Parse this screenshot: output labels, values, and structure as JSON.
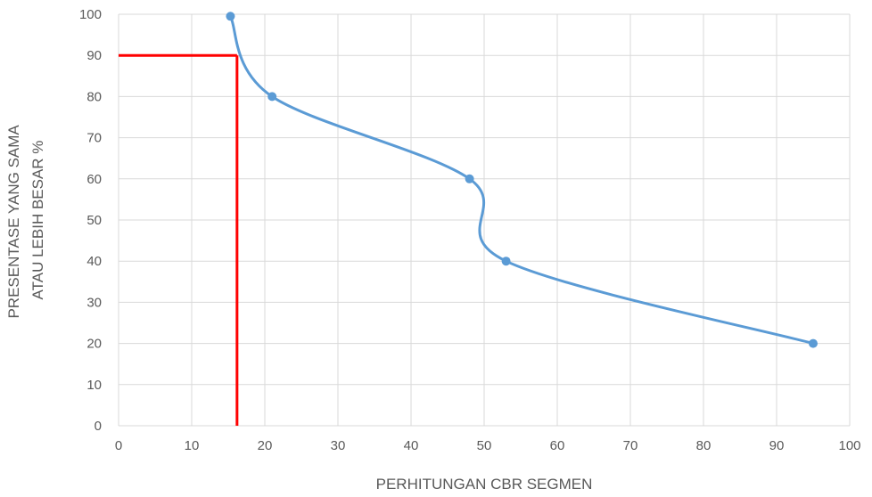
{
  "chart_data": {
    "type": "scatter",
    "title": "",
    "xlabel": "PERHITUNGAN CBR SEGMEN",
    "ylabel_lines": [
      "PRESENTASE YANG SAMA",
      "ATAU LEBIH BESAR %"
    ],
    "xlim": [
      0,
      100
    ],
    "ylim": [
      0,
      100
    ],
    "x_ticks": [
      0,
      10,
      20,
      30,
      40,
      50,
      60,
      70,
      80,
      90,
      100
    ],
    "y_ticks": [
      0,
      10,
      20,
      30,
      40,
      50,
      60,
      70,
      80,
      90,
      100
    ],
    "grid": true,
    "series": [
      {
        "color": "#5B9BD5",
        "smooth": true,
        "points": [
          {
            "x": 15.3,
            "y": 99.5
          },
          {
            "x": 21,
            "y": 80
          },
          {
            "x": 48,
            "y": 60
          },
          {
            "x": 53,
            "y": 40
          },
          {
            "x": 95,
            "y": 20
          }
        ]
      }
    ],
    "reference_lines": {
      "color": "#FF0000",
      "x": 16.2,
      "y": 90
    }
  }
}
